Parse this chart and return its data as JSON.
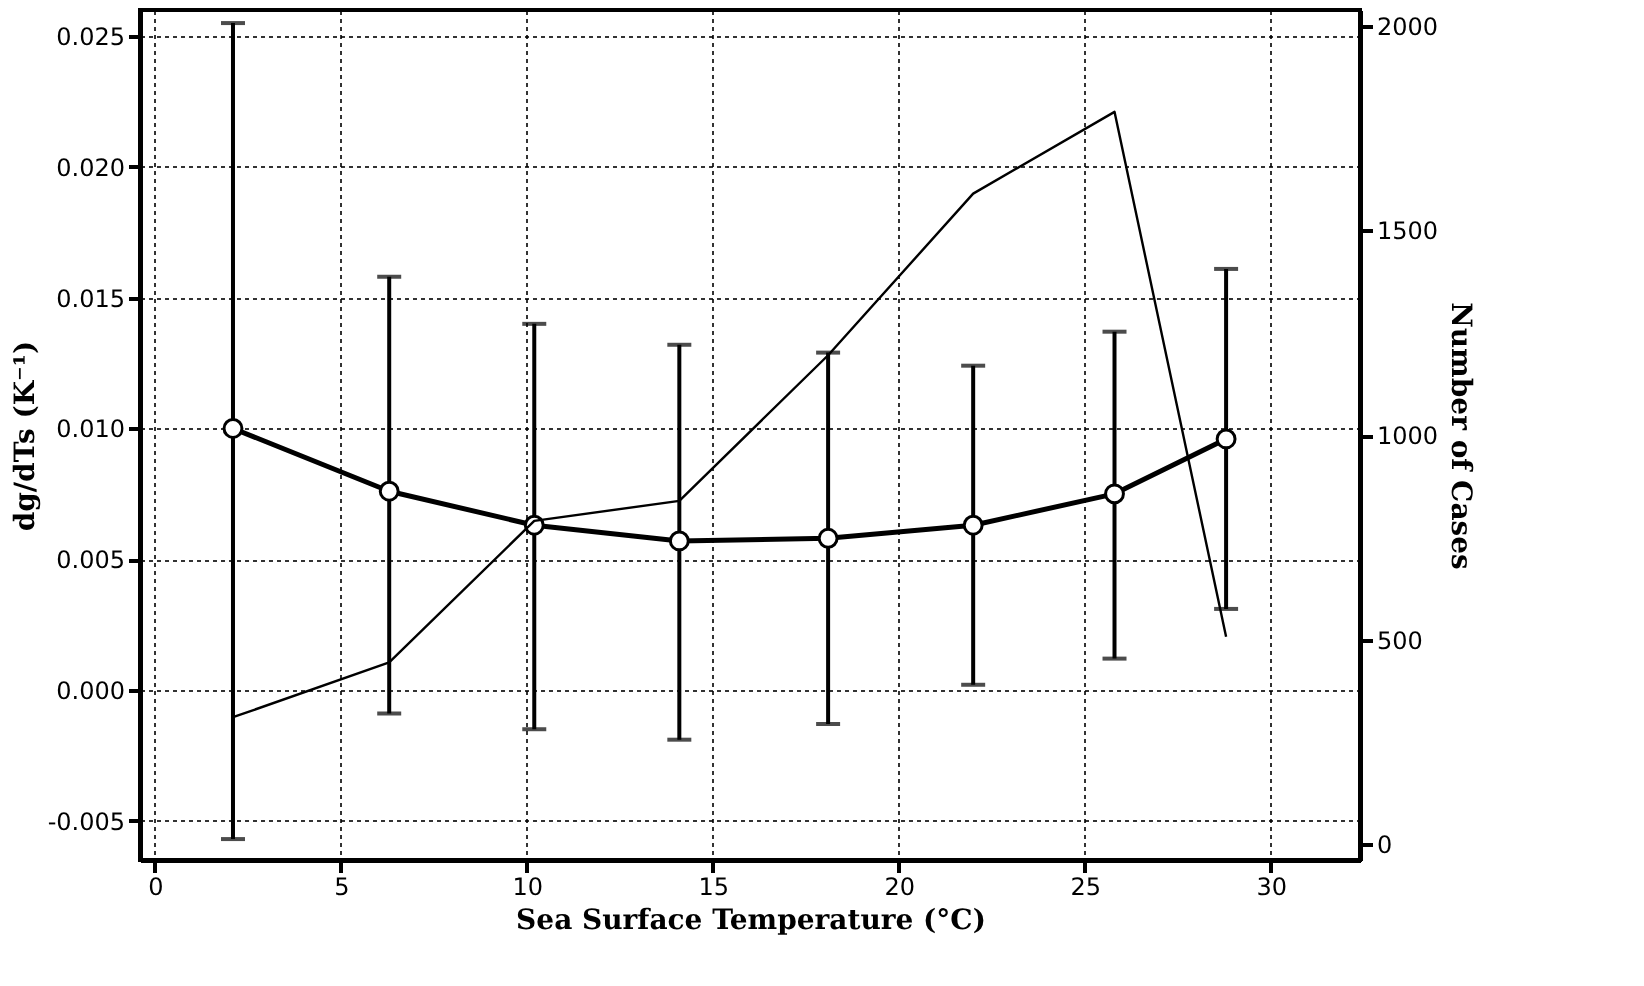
{
  "chart_data": {
    "type": "line",
    "xlabel": "Sea Surface Temperature (°C)",
    "ylabel": "dg/dTs (K⁻¹)",
    "y2label": "Number of Cases",
    "xlim": [
      -0.4,
      32.4
    ],
    "xticks": [
      0,
      5,
      10,
      15,
      20,
      25,
      30
    ],
    "ylim": [
      -0.0065,
      0.026
    ],
    "yticks": [
      {
        "value": -0.005,
        "label": "-0.005"
      },
      {
        "value": 0,
        "label": "0.000"
      },
      {
        "value": 0.005,
        "label": "0.005"
      },
      {
        "value": 0.01,
        "label": "0.010"
      },
      {
        "value": 0.015,
        "label": "0.015"
      },
      {
        "value": 0.02,
        "label": "0.020"
      },
      {
        "value": 0.025,
        "label": "0.025"
      }
    ],
    "y2lim": [
      -39,
      2039
    ],
    "y2ticks": [
      0,
      500,
      1000,
      1500,
      2000
    ],
    "grid": true,
    "series": [
      {
        "color": "#000000",
        "marker": "circle",
        "x": [
          2.1,
          6.3,
          10.2,
          14.1,
          18.1,
          22.0,
          25.8,
          28.8
        ],
        "values": [
          0.01,
          0.0076,
          0.0063,
          0.0057,
          0.0058,
          0.0063,
          0.0075,
          0.0096
        ],
        "errors": [
          [
            -0.0057,
            0.0255
          ],
          [
            -0.0009,
            0.0158
          ],
          [
            -0.0015,
            0.014
          ],
          [
            -0.0019,
            0.0132
          ],
          [
            -0.0013,
            0.0129
          ],
          [
            0.0002,
            0.0124
          ],
          [
            0.0012,
            0.0137
          ],
          [
            0.0031,
            0.0161
          ]
        ]
      },
      {
        "color": "#000000",
        "axis": "y2",
        "x": [
          2.1,
          6.3,
          10.2,
          14.1,
          18.1,
          22.0,
          25.8,
          28.8
        ],
        "values": [
          310,
          444,
          790,
          839,
          1195,
          1590,
          1790,
          507
        ]
      }
    ]
  }
}
